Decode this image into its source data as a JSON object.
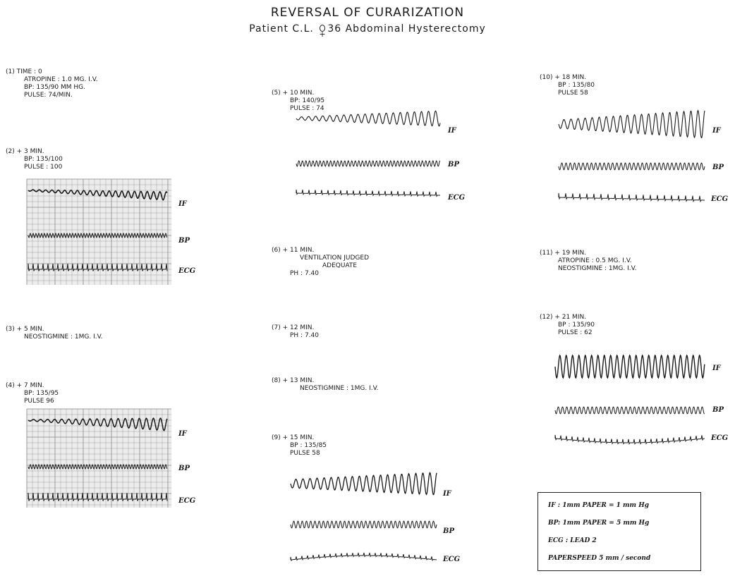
{
  "header": {
    "title": "REVERSAL OF CURARIZATION",
    "subtitle_pre": "Patient C.L.",
    "subtitle_post": "36  Abdominal Hysterectomy"
  },
  "entries": [
    {
      "id": "1",
      "lines": [
        "(1) TIME : 0",
        "ATROPINE : 1.0 mg. i.v.",
        "BP: 135/90 mm Hg.",
        "PULSE: 74/min."
      ]
    },
    {
      "id": "2",
      "lines": [
        "(2) + 3 MIN.",
        "BP: 135/100",
        "PULSE : 100"
      ]
    },
    {
      "id": "3",
      "lines": [
        "(3) + 5 MIN.",
        "NEOSTIGMINE : 1mg. i.v."
      ]
    },
    {
      "id": "4",
      "lines": [
        "(4) + 7 MIN.",
        "BP: 135/95",
        "PULSE 96"
      ]
    },
    {
      "id": "5",
      "lines": [
        "(5) + 10 MIN.",
        "BP: 140/95",
        "PULSE : 74"
      ]
    },
    {
      "id": "6",
      "lines": [
        "(6) + 11 MIN.",
        "VENTILATION JUDGED",
        "ADEQUATE",
        "pH : 7.40"
      ]
    },
    {
      "id": "7",
      "lines": [
        "(7) + 12 MIN.",
        "pH : 7.40"
      ]
    },
    {
      "id": "8",
      "lines": [
        "(8) + 13 MIN.",
        "NEOSTIGMINE : 1mg. i.v."
      ]
    },
    {
      "id": "9",
      "lines": [
        "(9) + 15 MIN.",
        "BP : 135/85",
        "PULSE 58"
      ]
    },
    {
      "id": "10",
      "lines": [
        "(10) + 18 MIN.",
        "BP : 135/80",
        "PULSE 58"
      ]
    },
    {
      "id": "11",
      "lines": [
        "(11) + 19 MIN.",
        "ATROPINE : 0.5 mg. i.v.",
        "NEOSTIGMINE : 1mg. i.v."
      ]
    },
    {
      "id": "12",
      "lines": [
        "(12) + 21 MIN.",
        "BP : 135/90",
        "PULSE : 62"
      ]
    }
  ],
  "trace_labels": {
    "if": "IF",
    "bp": "BP",
    "ecg": "ECG"
  },
  "legend": [
    "IF : 1mm PAPER = 1 mm Hg",
    "BP: 1mm PAPER = 5 mm Hg",
    "ECG : LEAD 2",
    "PAPERSPEED 5 mm / second"
  ]
}
